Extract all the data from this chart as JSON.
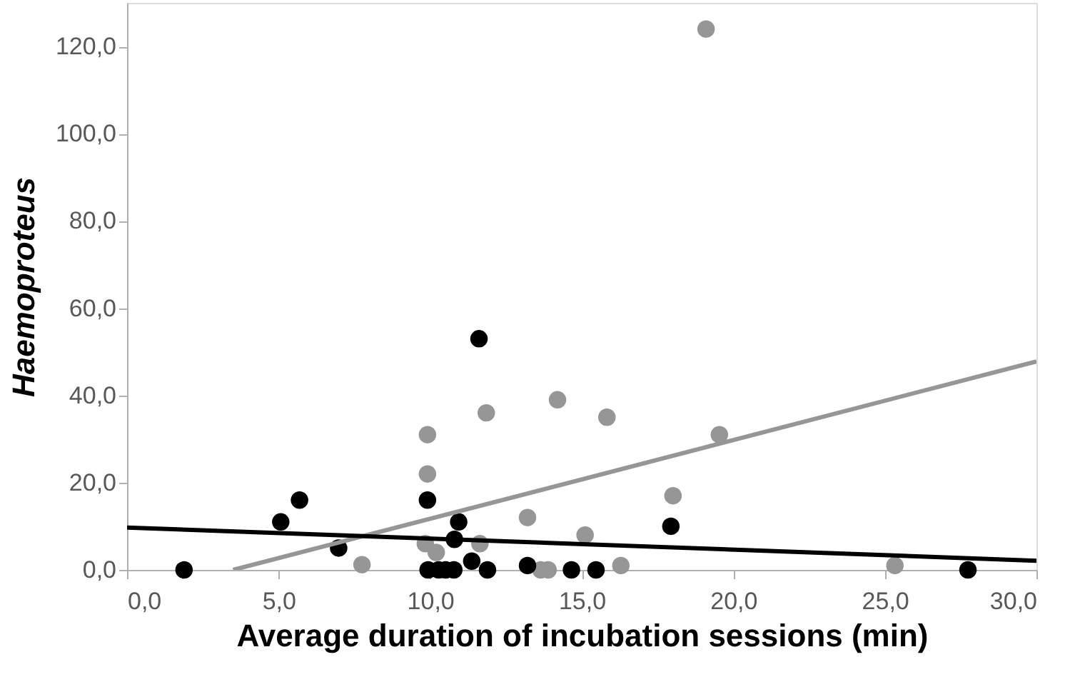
{
  "chart_data": {
    "type": "scatter",
    "xlabel": "Average duration of incubation sessions (min)",
    "ylabel": "Haemoproteus",
    "xlim": [
      0,
      30
    ],
    "ylim": [
      0,
      130
    ],
    "xticks": [
      {
        "value": 0,
        "label": "0,0"
      },
      {
        "value": 5,
        "label": "5,0"
      },
      {
        "value": 10,
        "label": "10,0"
      },
      {
        "value": 15,
        "label": "15,0"
      },
      {
        "value": 20,
        "label": "20,0"
      },
      {
        "value": 25,
        "label": "25,0"
      },
      {
        "value": 30,
        "label": "30,0"
      }
    ],
    "yticks": [
      {
        "value": 0,
        "label": "0,0"
      },
      {
        "value": 20,
        "label": "20,0"
      },
      {
        "value": 40,
        "label": "40,0"
      },
      {
        "value": 60,
        "label": "60,0"
      },
      {
        "value": 80,
        "label": "80,0"
      },
      {
        "value": 100,
        "label": "100,0"
      },
      {
        "value": 120,
        "label": "120,0"
      }
    ],
    "grid": false,
    "marker": "circle",
    "series": [
      {
        "color": "#969696",
        "x": [
          7.75,
          9.91,
          9.91,
          11.85,
          14.2,
          15.83,
          9.84,
          10.2,
          11.64,
          13.21,
          15.11,
          13.65,
          13.89,
          16.29,
          18.01,
          19.54,
          25.33,
          19.1
        ],
        "values": [
          1.2,
          31,
          22,
          36,
          39,
          35,
          6,
          4,
          6,
          12,
          8,
          0,
          0,
          1,
          17,
          31,
          1,
          124
        ]
      },
      {
        "color": "#000000",
        "x": [
          1.88,
          5.07,
          5.69,
          6.98,
          9.91,
          10.94,
          10.8,
          11.37,
          9.93,
          10.28,
          10.51,
          10.78,
          11.89,
          13.21,
          14.66,
          15.47,
          11.61,
          17.94,
          27.74
        ],
        "values": [
          0,
          11,
          16,
          5,
          16,
          11,
          7,
          2,
          0,
          0,
          0,
          0,
          0,
          1,
          0,
          0,
          53,
          10,
          0
        ]
      },
      {
        "type": "line",
        "marker": "none",
        "color": "#969696",
        "x": [
          3.5,
          30
        ],
        "values": [
          0,
          47.8
        ]
      },
      {
        "type": "line",
        "marker": "none",
        "color": "#000000",
        "x": [
          0,
          30
        ],
        "values": [
          9.7,
          2.1
        ]
      }
    ]
  }
}
